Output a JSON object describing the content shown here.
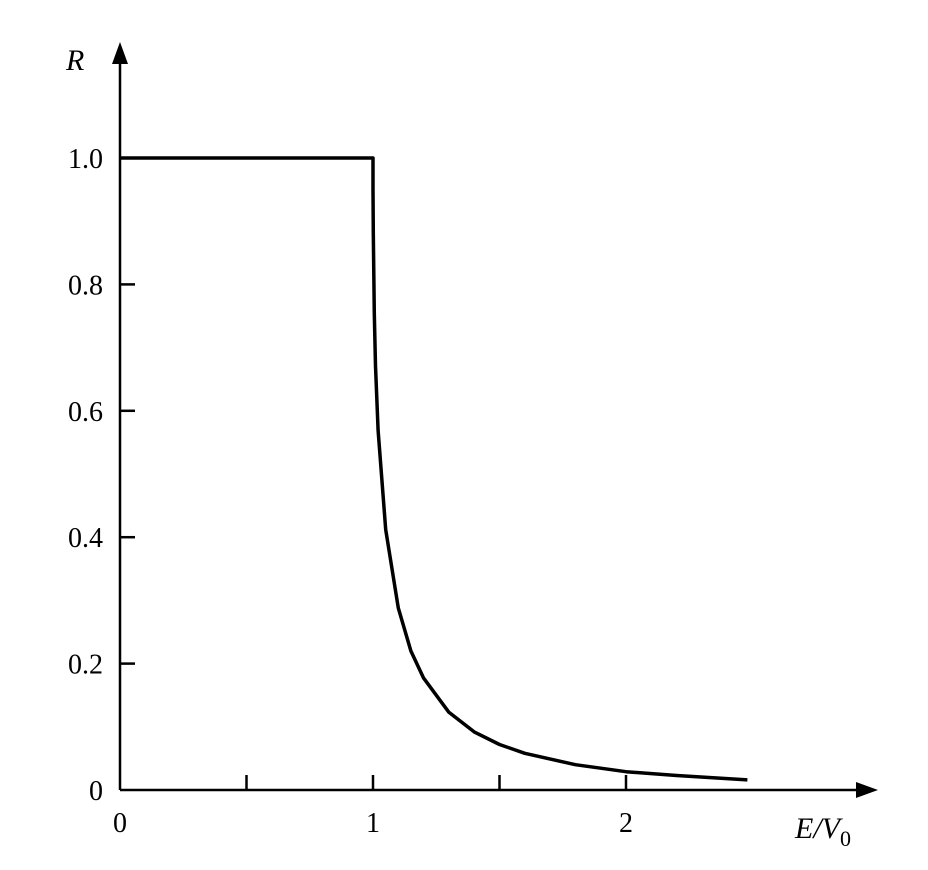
{
  "chart_data": {
    "type": "line",
    "title": "",
    "xlabel": "E/V",
    "xlabel_subscript": "0",
    "ylabel": "R",
    "xlim": [
      0,
      2.9
    ],
    "ylim": [
      0,
      1.07
    ],
    "grid": false,
    "x_ticks": [
      0,
      0.5,
      1,
      1.5,
      2
    ],
    "x_tick_labels": [
      "0",
      "",
      "1",
      "",
      "2"
    ],
    "y_ticks": [
      0,
      0.2,
      0.4,
      0.6,
      0.8,
      1.0
    ],
    "y_tick_labels": [
      "0",
      "0.2",
      "0.4",
      "0.6",
      "0.8",
      "1.0"
    ],
    "series": [
      {
        "name": "R",
        "color": "#000000",
        "x": [
          0,
          1.0,
          1.0,
          1.001,
          1.005,
          1.01,
          1.02,
          1.05,
          1.1,
          1.15,
          1.2,
          1.3,
          1.4,
          1.5,
          1.6,
          1.8,
          2.0,
          2.2,
          2.48
        ],
        "y": [
          1.0,
          1.0,
          0.95,
          0.881,
          0.754,
          0.671,
          0.569,
          0.412,
          0.288,
          0.22,
          0.177,
          0.123,
          0.092,
          0.072,
          0.058,
          0.04,
          0.029,
          0.023,
          0.016
        ]
      }
    ]
  }
}
